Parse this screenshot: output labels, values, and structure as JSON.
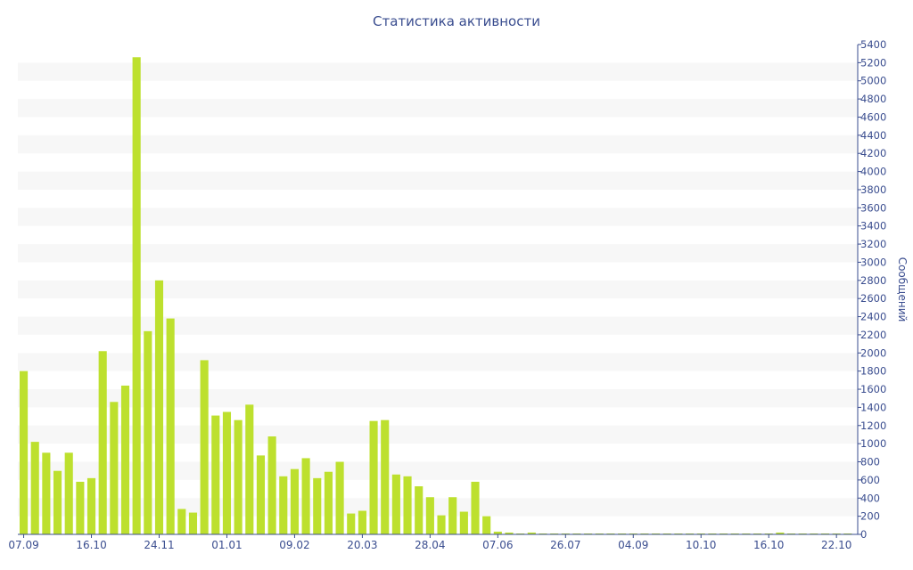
{
  "chart_data": {
    "type": "bar",
    "title": "Статистика активности",
    "xlabel": "",
    "ylabel": "Сообщений",
    "ylim": [
      0,
      5400
    ],
    "y_ticks": [
      0,
      200,
      400,
      600,
      800,
      1000,
      1200,
      1400,
      1600,
      1800,
      2000,
      2200,
      2400,
      2600,
      2800,
      3000,
      3200,
      3400,
      3600,
      3800,
      4000,
      4200,
      4400,
      4600,
      4800,
      5000,
      5200,
      5400
    ],
    "x_tick_labels": [
      {
        "index": 0,
        "label": "07.09"
      },
      {
        "index": 6,
        "label": "16.10"
      },
      {
        "index": 12,
        "label": "24.11"
      },
      {
        "index": 18,
        "label": "01.01"
      },
      {
        "index": 24,
        "label": "09.02"
      },
      {
        "index": 30,
        "label": "20.03"
      },
      {
        "index": 36,
        "label": "28.04"
      },
      {
        "index": 42,
        "label": "07.06"
      },
      {
        "index": 48,
        "label": "26.07"
      },
      {
        "index": 54,
        "label": "04.09"
      },
      {
        "index": 60,
        "label": "10.10"
      },
      {
        "index": 66,
        "label": "16.10"
      },
      {
        "index": 72,
        "label": "22.10"
      }
    ],
    "series": [
      {
        "color": "#bde02e",
        "values": [
          1800,
          1020,
          900,
          700,
          900,
          580,
          620,
          2020,
          1460,
          1640,
          5260,
          2240,
          2800,
          2380,
          280,
          240,
          1920,
          1310,
          1350,
          1260,
          1430,
          870,
          1080,
          640,
          720,
          840,
          620,
          690,
          800,
          230,
          260,
          1250,
          1260,
          660,
          640,
          530,
          410,
          210,
          410,
          250,
          580,
          200,
          30,
          20,
          10,
          20,
          10,
          10,
          10,
          10,
          10,
          10,
          10,
          10,
          10,
          10,
          10,
          10,
          10,
          10,
          10,
          10,
          10,
          10,
          10,
          10,
          10,
          20,
          10,
          10,
          10,
          10,
          10,
          10
        ]
      }
    ],
    "grid": "horizontal-bands",
    "band_color": "#f7f7f7",
    "axis_color": "#3a4d8f",
    "yaxis_position": "right"
  }
}
